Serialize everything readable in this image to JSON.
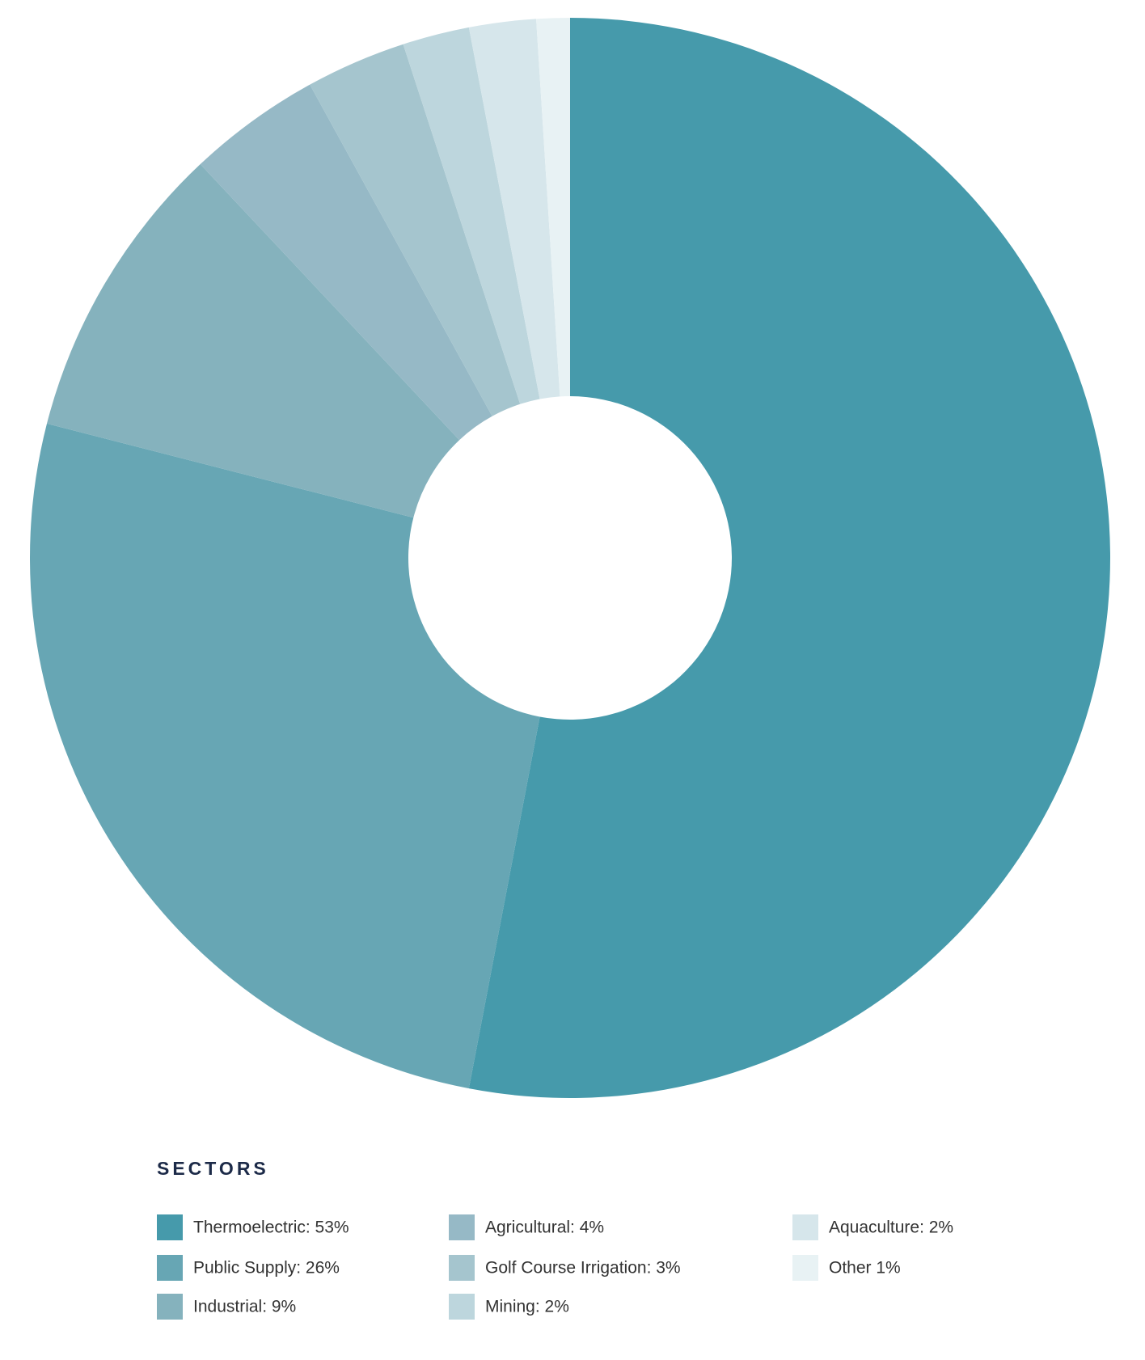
{
  "chart_data": {
    "type": "donut",
    "legend_title": "SECTORS",
    "categories": [
      "Thermoelectric: 53%",
      "Public Supply: 26%",
      "Industrial: 9%",
      "Agricultural: 4%",
      "Golf Course Irrigation: 3%",
      "Mining: 2%",
      "Aquaculture: 2%",
      "Other 1%"
    ],
    "values": [
      53,
      26,
      9,
      4,
      3,
      2,
      2,
      1
    ],
    "colors": [
      "#469aab",
      "#67a6b4",
      "#85b2bd",
      "#96b9c6",
      "#a5c5ce",
      "#bdd6dd",
      "#d6e6eb",
      "#e8f2f4"
    ]
  }
}
